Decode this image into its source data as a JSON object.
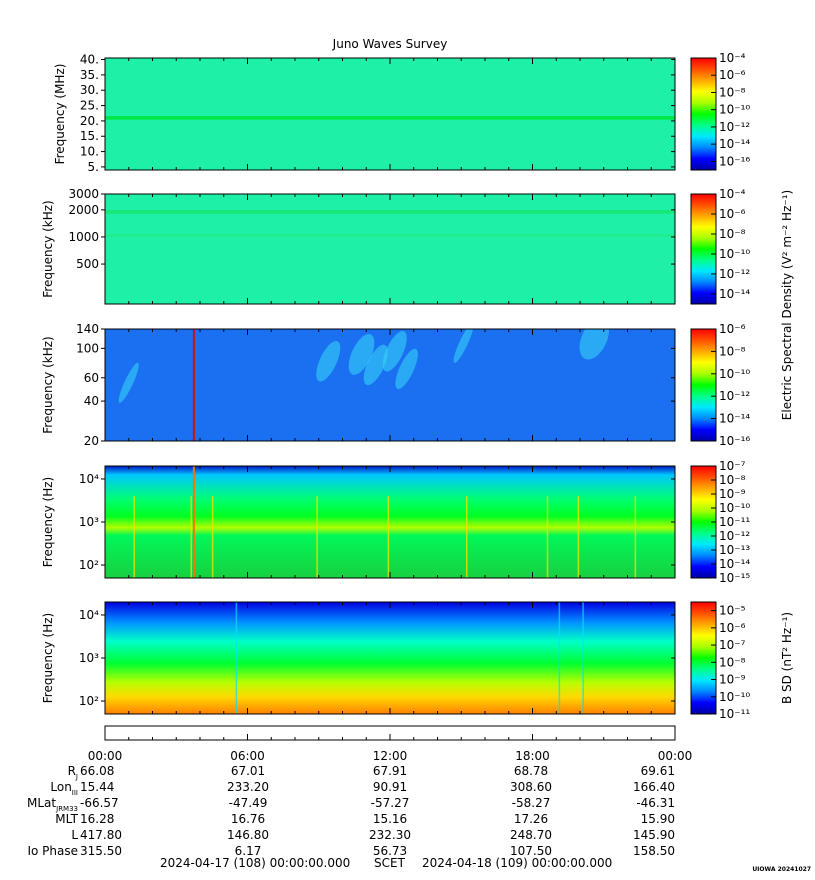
{
  "figure": {
    "title": "Juno Waves Survey",
    "credit": "UIOWA 20241027",
    "footer": {
      "start": "2024-04-17 (108) 00:00:00.000",
      "label": "SCET",
      "end": "2024-04-18 (109) 00:00:00.000"
    }
  },
  "colors": {
    "colormap": [
      "#0000a8",
      "#0000ff",
      "#0088ff",
      "#00e8ff",
      "#00ff88",
      "#00ff00",
      "#a8ff00",
      "#ffff00",
      "#ffa800",
      "#ff5000",
      "#ff0000"
    ]
  },
  "shared_colorbar_label": "Electric Spectral Density (V² m⁻² Hz⁻¹)",
  "chart_data": [
    {
      "type": "heatmap",
      "panel": "E-field high band",
      "ylabel": "Frequency (MHz)",
      "yscale": "linear",
      "ylim": [
        4,
        40.5
      ],
      "yticks": [
        "5.",
        "10.",
        "15.",
        "20.",
        "25.",
        "30.",
        "35.",
        "40."
      ],
      "ytick_values": [
        5,
        10,
        15,
        20,
        25,
        30,
        35,
        40
      ],
      "background": "#1ef0a8",
      "bands": [
        {
          "y": 21.0,
          "width": 1.2,
          "color": "#00e84a"
        }
      ],
      "colorbar": {
        "label": "",
        "ticks": [
          "10⁻⁴",
          "10⁻⁶",
          "10⁻⁸",
          "10⁻¹⁰",
          "10⁻¹²",
          "10⁻¹⁴",
          "10⁻¹⁶"
        ],
        "log_range": [
          -17,
          -4
        ]
      }
    },
    {
      "type": "heatmap",
      "panel": "E-field medium band",
      "ylabel": "Frequency (kHz)",
      "yscale": "log",
      "ylim": [
        180,
        3000
      ],
      "yticks": [
        "3000",
        "2000",
        "1000",
        "500"
      ],
      "ytick_values": [
        3000,
        2000,
        1000,
        500
      ],
      "background": "#1ef0a8",
      "bands": [
        {
          "y": 1900,
          "width": 180,
          "color": "#18e878"
        },
        {
          "y": 1050,
          "width": 60,
          "color": "#22ec90"
        }
      ],
      "colorbar": {
        "label": "",
        "ticks": [
          "10⁻⁴",
          "10⁻⁶",
          "10⁻⁸",
          "10⁻¹⁰",
          "10⁻¹²",
          "10⁻¹⁴"
        ],
        "log_range": [
          -15,
          -4
        ]
      }
    },
    {
      "type": "heatmap",
      "panel": "E-field low band",
      "ylabel": "Frequency (kHz)",
      "yscale": "log",
      "ylim": [
        20,
        140
      ],
      "yticks": [
        "140",
        "100",
        "60",
        "40",
        "20"
      ],
      "ytick_values": [
        140,
        100,
        60,
        40,
        20
      ],
      "background": "#1a70f0",
      "emissions_hours": [
        3.7,
        9.5,
        11.2,
        12.3,
        15.1,
        20.7
      ],
      "colorbar": {
        "label": "Electric Spectral Density (V² m⁻² Hz⁻¹)",
        "ticks": [
          "10⁻⁶",
          "10⁻⁸",
          "10⁻¹⁰",
          "10⁻¹²",
          "10⁻¹⁴",
          "10⁻¹⁶"
        ],
        "log_range": [
          -16,
          -6
        ]
      }
    },
    {
      "type": "heatmap",
      "panel": "E-field waveform band",
      "ylabel": "Frequency (Hz)",
      "yscale": "log",
      "ylim": [
        50,
        20000
      ],
      "yticks": [
        "10⁴",
        "10³",
        "10²"
      ],
      "ytick_values": [
        10000,
        1000,
        100
      ],
      "layers": [
        "#0030e8",
        "#00c8ff",
        "#00ff60",
        "#00ff20",
        "#60ff00",
        "#00e868"
      ],
      "colorbar": {
        "label": "",
        "ticks": [
          "10⁻⁷",
          "10⁻⁸",
          "10⁻⁹",
          "10⁻¹⁰",
          "10⁻¹¹",
          "10⁻¹²",
          "10⁻¹³",
          "10⁻¹⁴",
          "10⁻¹⁵"
        ],
        "log_range": [
          -15,
          -7
        ]
      }
    },
    {
      "type": "heatmap",
      "panel": "B-field",
      "ylabel": "Frequency (Hz)",
      "yscale": "log",
      "ylim": [
        50,
        20000
      ],
      "yticks": [
        "10⁴",
        "10³",
        "10²"
      ],
      "ytick_values": [
        10000,
        1000,
        100
      ],
      "vertical_lines_hours": [
        5.5,
        19.1,
        20.1
      ],
      "colorbar": {
        "label": "B SD (nT² Hz⁻¹)",
        "ticks": [
          "10⁻⁵",
          "10⁻⁶",
          "10⁻⁷",
          "10⁻⁸",
          "10⁻⁹",
          "10⁻¹⁰",
          "10⁻¹¹"
        ],
        "log_range": [
          -11,
          -4.5
        ]
      }
    }
  ],
  "time_axis": {
    "tick_hours": [
      0,
      6,
      12,
      18,
      24
    ],
    "tick_labels": [
      "00:00",
      "06:00",
      "12:00",
      "18:00",
      "00:00"
    ]
  },
  "ephemeris": [
    {
      "label": "R",
      "sub": "J",
      "values": [
        "66.08",
        "67.01",
        "67.91",
        "68.78",
        "69.61"
      ]
    },
    {
      "label": "Lon",
      "sub": "III",
      "values": [
        "15.44",
        "233.20",
        "90.91",
        "308.60",
        "166.40"
      ]
    },
    {
      "label": "MLat",
      "sub": "JRM33",
      "values": [
        "-66.57",
        "-47.49",
        "-57.27",
        "-58.27",
        "-46.31"
      ]
    },
    {
      "label": "MLT",
      "sub": "",
      "values": [
        "16.28",
        "16.76",
        "15.16",
        "17.26",
        "15.90"
      ]
    },
    {
      "label": "L",
      "sub": "",
      "values": [
        "417.80",
        "146.80",
        "232.30",
        "248.70",
        "145.90"
      ]
    },
    {
      "label": "Io Phase",
      "sub": "",
      "values": [
        "315.50",
        "6.17",
        "56.73",
        "107.50",
        "158.50"
      ]
    }
  ]
}
